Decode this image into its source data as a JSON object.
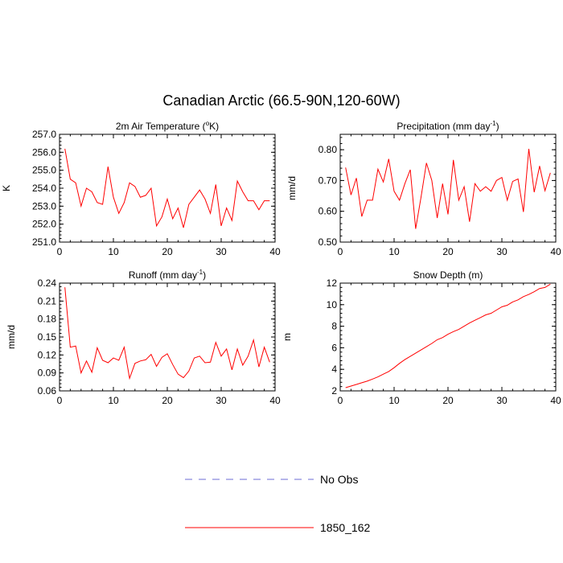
{
  "title": "Canadian Arctic (66.5-90N,120-60W)",
  "legend": [
    {
      "label": "No Obs",
      "color": "#6b6bd6",
      "dash": true
    },
    {
      "label": "1850_162",
      "color": "#ff0000",
      "dash": false
    }
  ],
  "chart_data": [
    {
      "type": "line",
      "title": "2m Air Temperature (°K)",
      "ylabel": "K",
      "xlim": [
        0,
        40
      ],
      "ylim": [
        251.0,
        257.0
      ],
      "yticks": [
        "251.0",
        "252.0",
        "253.0",
        "254.0",
        "255.0",
        "256.0",
        "257.0"
      ],
      "xticks": [
        "0",
        "10",
        "20",
        "30",
        "40"
      ],
      "series": [
        {
          "name": "1850_162",
          "color": "#ff0000",
          "x": [
            1,
            2,
            3,
            4,
            5,
            6,
            7,
            8,
            9,
            10,
            11,
            12,
            13,
            14,
            15,
            16,
            17,
            18,
            19,
            20,
            21,
            22,
            23,
            24,
            25,
            26,
            27,
            28,
            29,
            30,
            31,
            32,
            33,
            34,
            35,
            36,
            37,
            38,
            39
          ],
          "values": [
            256.2,
            254.5,
            254.3,
            253.0,
            254.0,
            253.8,
            253.2,
            253.1,
            255.2,
            253.5,
            252.6,
            253.2,
            254.3,
            254.1,
            253.5,
            253.6,
            254.0,
            251.9,
            252.4,
            253.4,
            252.3,
            252.9,
            251.8,
            253.1,
            253.5,
            253.9,
            253.4,
            252.6,
            254.2,
            251.9,
            252.9,
            252.2,
            254.4,
            253.8,
            253.3,
            253.3,
            252.8,
            253.3,
            253.3
          ]
        }
      ]
    },
    {
      "type": "line",
      "title": "Precipitation (mm day-1)",
      "ylabel": "mm/d",
      "xlim": [
        0,
        40
      ],
      "ylim": [
        0.5,
        0.85
      ],
      "yticks": [
        "0.50",
        "0.60",
        "0.70",
        "0.80"
      ],
      "xticks": [
        "0",
        "10",
        "20",
        "30",
        "40"
      ],
      "series": [
        {
          "name": "1850_162",
          "color": "#ff0000",
          "x": [
            1,
            2,
            3,
            4,
            5,
            6,
            7,
            8,
            9,
            10,
            11,
            12,
            13,
            14,
            15,
            16,
            17,
            18,
            19,
            20,
            21,
            22,
            23,
            24,
            25,
            26,
            27,
            28,
            29,
            30,
            31,
            32,
            33,
            34,
            35,
            36,
            37,
            38,
            39
          ],
          "values": [
            0.742,
            0.653,
            0.708,
            0.583,
            0.636,
            0.636,
            0.737,
            0.695,
            0.77,
            0.665,
            0.636,
            0.69,
            0.735,
            0.543,
            0.646,
            0.757,
            0.7,
            0.578,
            0.69,
            0.59,
            0.767,
            0.636,
            0.68,
            0.566,
            0.69,
            0.665,
            0.68,
            0.665,
            0.7,
            0.71,
            0.636,
            0.697,
            0.705,
            0.598,
            0.803,
            0.662,
            0.747,
            0.667,
            0.725
          ]
        }
      ]
    },
    {
      "type": "line",
      "title": "Runoff (mm day-1)",
      "ylabel": "mm/d",
      "xlim": [
        0,
        40
      ],
      "ylim": [
        0.06,
        0.24
      ],
      "yticks": [
        "0.06",
        "0.09",
        "0.12",
        "0.15",
        "0.18",
        "0.21",
        "0.24"
      ],
      "xticks": [
        "0",
        "10",
        "20",
        "30",
        "40"
      ],
      "series": [
        {
          "name": "1850_162",
          "color": "#ff0000",
          "x": [
            1,
            2,
            3,
            4,
            5,
            6,
            7,
            8,
            9,
            10,
            11,
            12,
            13,
            14,
            15,
            16,
            17,
            18,
            19,
            20,
            21,
            22,
            23,
            24,
            25,
            26,
            27,
            28,
            29,
            30,
            31,
            32,
            33,
            34,
            35,
            36,
            37,
            38,
            39
          ],
          "values": [
            0.233,
            0.133,
            0.135,
            0.09,
            0.11,
            0.091,
            0.132,
            0.111,
            0.107,
            0.115,
            0.111,
            0.133,
            0.081,
            0.106,
            0.11,
            0.112,
            0.121,
            0.101,
            0.116,
            0.122,
            0.104,
            0.088,
            0.082,
            0.093,
            0.115,
            0.118,
            0.107,
            0.108,
            0.141,
            0.118,
            0.13,
            0.095,
            0.13,
            0.103,
            0.118,
            0.145,
            0.1,
            0.133,
            0.108
          ]
        }
      ]
    },
    {
      "type": "line",
      "title": "Snow Depth (m)",
      "ylabel": "m",
      "xlim": [
        0,
        40
      ],
      "ylim": [
        2,
        12
      ],
      "yticks": [
        "2",
        "4",
        "6",
        "8",
        "10",
        "12"
      ],
      "xticks": [
        "0",
        "10",
        "20",
        "30",
        "40"
      ],
      "series": [
        {
          "name": "1850_162",
          "color": "#ff0000",
          "x": [
            1,
            2,
            3,
            4,
            5,
            6,
            7,
            8,
            9,
            10,
            11,
            12,
            13,
            14,
            15,
            16,
            17,
            18,
            19,
            20,
            21,
            22,
            23,
            24,
            25,
            26,
            27,
            28,
            29,
            30,
            31,
            32,
            33,
            34,
            35,
            36,
            37,
            38,
            39
          ],
          "values": [
            2.3,
            2.45,
            2.6,
            2.75,
            2.9,
            3.1,
            3.3,
            3.55,
            3.8,
            4.15,
            4.55,
            4.9,
            5.2,
            5.5,
            5.8,
            6.1,
            6.4,
            6.75,
            6.95,
            7.25,
            7.5,
            7.7,
            8.0,
            8.3,
            8.55,
            8.8,
            9.05,
            9.2,
            9.5,
            9.8,
            9.95,
            10.25,
            10.45,
            10.75,
            10.95,
            11.2,
            11.5,
            11.6,
            11.9
          ]
        }
      ]
    }
  ]
}
